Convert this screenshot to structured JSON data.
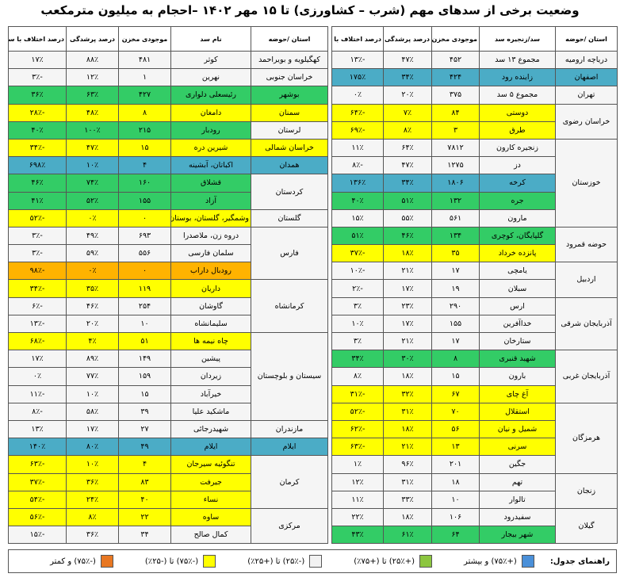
{
  "title": "وضعیت برخی از سدهای مهم (شرب – کشاورزی) تا ۱۵ مهر ۱۴۰۲ –احجام به میلیون مترمکعب",
  "right_table": {
    "headers": [
      "استان /حوضه",
      "سد/زنجیره سد",
      "موجودی مخزن",
      "درصد پرشدگی",
      "درصد اختلاف با سال قبل"
    ],
    "groups": [
      {
        "province": "دریاچه ارومیه",
        "color": "#f5f5f5",
        "rows": [
          [
            "مجموع ۱۳ سد",
            "۴۵۲",
            "۴۷٪",
            "-۱۳٪",
            "#f5f5f5"
          ]
        ]
      },
      {
        "province": "اصفهان",
        "color": "#4bacc6",
        "rows": [
          [
            "زاینده رود",
            "۴۲۴",
            "۳۴٪",
            "۱۷۵٪",
            "#4bacc6"
          ]
        ]
      },
      {
        "province": "تهران",
        "color": "#f5f5f5",
        "rows": [
          [
            "مجموع ۵ سد",
            "۳۷۵",
            "۲۰٪",
            "۰٪",
            "#f5f5f5"
          ]
        ]
      },
      {
        "province": "خراسان رضوی",
        "color": "#f5f5f5",
        "rows": [
          [
            "دوستی",
            "۸۴",
            "۷٪",
            "-۶۴٪",
            "#ffff00"
          ],
          [
            "طرق",
            "۳",
            "۸٪",
            "-۶۹٪",
            "#ffff00"
          ]
        ]
      },
      {
        "province": "خوزستان",
        "color": "#f5f5f5",
        "rows": [
          [
            "زنجیره کارون",
            "۷۸۱۲",
            "۶۴٪",
            "۱۱٪",
            "#f5f5f5"
          ],
          [
            "دز",
            "۱۲۷۵",
            "۴۷٪",
            "-۸٪",
            "#f5f5f5"
          ],
          [
            "کرخه",
            "۱۸۰۶",
            "۳۴٪",
            "۱۳۶٪",
            "#4bacc6"
          ],
          [
            "جره",
            "۱۳۲",
            "۵۱٪",
            "۴۰٪",
            "#33cc66"
          ],
          [
            "مارون",
            "۵۶۱",
            "۵۵٪",
            "۱۵٪",
            "#f5f5f5"
          ]
        ]
      },
      {
        "province": "حوضه قمرود",
        "color": "#f5f5f5",
        "rows": [
          [
            "گلپایگان، کوچری",
            "۱۳۴",
            "۴۶٪",
            "۵۱٪",
            "#33cc66"
          ],
          [
            "پانزده خرداد",
            "۳۵",
            "۱۸٪",
            "-۳۷٪",
            "#ffff00"
          ]
        ]
      },
      {
        "province": "اردبیل",
        "color": "#f5f5f5",
        "rows": [
          [
            "یامچی",
            "۱۷",
            "۲۱٪",
            "-۱۰٪",
            "#f5f5f5"
          ],
          [
            "سبلان",
            "۱۹",
            "۱۷٪",
            "-۲٪",
            "#f5f5f5"
          ]
        ]
      },
      {
        "province": "آذربایجان شرقی",
        "color": "#f5f5f5",
        "rows": [
          [
            "ارس",
            "۲۹۰",
            "۲۳٪",
            "۳٪",
            "#f5f5f5"
          ],
          [
            "خداآفرین",
            "۱۵۵",
            "۱۷٪",
            "۱۰٪",
            "#f5f5f5"
          ],
          [
            "ستارخان",
            "۱۷",
            "۲۱٪",
            "۳٪",
            "#f5f5f5"
          ]
        ]
      },
      {
        "province": "آذربایجان غربی",
        "color": "#f5f5f5",
        "rows": [
          [
            "شهید قنبری",
            "۸",
            "۳۰٪",
            "۳۴٪",
            "#33cc66"
          ],
          [
            "بارون",
            "۱۵",
            "۱۸٪",
            "۸٪",
            "#f5f5f5"
          ],
          [
            "آغ چای",
            "۶۷",
            "۳۲٪",
            "-۳۱٪",
            "#ffff00"
          ]
        ]
      },
      {
        "province": "هرمزگان",
        "color": "#f5f5f5",
        "rows": [
          [
            "استقلال",
            "۷۰",
            "۳۱٪",
            "-۵۲٪",
            "#ffff00"
          ],
          [
            "شمیل و نیان",
            "۵۶",
            "۱۸٪",
            "-۶۲٪",
            "#ffff00"
          ],
          [
            "سرنی",
            "۱۳",
            "۲۱٪",
            "-۶۳٪",
            "#ffff00"
          ],
          [
            "جگین",
            "۲۰۱",
            "۹۶٪",
            "۱٪",
            "#f5f5f5"
          ]
        ]
      },
      {
        "province": "زنجان",
        "color": "#f5f5f5",
        "rows": [
          [
            "تهم",
            "۱۸",
            "۳۱٪",
            "۱۲٪",
            "#f5f5f5"
          ],
          [
            "تالوار",
            "۱۰",
            "۳۳٪",
            "۱۱٪",
            "#f5f5f5"
          ]
        ]
      },
      {
        "province": "گیلان",
        "color": "#f5f5f5",
        "rows": [
          [
            "سفیدرود",
            "۱۰۶",
            "۱۸٪",
            "۲۲٪",
            "#f5f5f5"
          ],
          [
            "شهر بیجار",
            "۶۴",
            "۶۱٪",
            "۴۳٪",
            "#33cc66"
          ]
        ]
      }
    ]
  },
  "left_table": {
    "headers": [
      "استان /حوضه",
      "نام سد",
      "موجودی مخزن",
      "درصد پرشدگی",
      "درصد اختلاف با سال قبل"
    ],
    "groups": [
      {
        "province": "کهگیلویه و بویراحمد",
        "color": "#f5f5f5",
        "rows": [
          [
            "کوثر",
            "۴۸۱",
            "۸۸٪",
            "۱۷٪",
            "#f5f5f5"
          ]
        ]
      },
      {
        "province": "خراسان جنوبی",
        "color": "#f5f5f5",
        "rows": [
          [
            "نهرین",
            "۱",
            "۱۲٪",
            "-۳٪",
            "#f5f5f5"
          ]
        ]
      },
      {
        "province": "بوشهر",
        "color": "#33cc66",
        "rows": [
          [
            "رئیسعلی دلواری",
            "۴۲۷",
            "۶۳٪",
            "۳۶٪",
            "#33cc66"
          ]
        ]
      },
      {
        "province": "سمنان",
        "color": "#ffff00",
        "rows": [
          [
            "دامغان",
            "۸",
            "۴۸٪",
            "-۲۸٪",
            "#ffff00"
          ]
        ]
      },
      {
        "province": "لرستان",
        "color": "#f5f5f5",
        "rows": [
          [
            "رودبار",
            "۲۱۵",
            "۱۰۰٪",
            "۴۰٪",
            "#33cc66"
          ]
        ]
      },
      {
        "province": "خراسان شمالی",
        "color": "#ffff00",
        "rows": [
          [
            "شیرین دره",
            "۱۵",
            "۴۷٪",
            "-۳۴٪",
            "#ffff00"
          ]
        ]
      },
      {
        "province": "همدان",
        "color": "#4bacc6",
        "rows": [
          [
            "اکباتان، آبشینه",
            "۴",
            "۱۰٪",
            "۶۹۸٪",
            "#4bacc6"
          ]
        ]
      },
      {
        "province": "کردستان",
        "color": "#f5f5f5",
        "rows": [
          [
            "قشلاق",
            "۱۶۰",
            "۷۴٪",
            "۴۶٪",
            "#33cc66"
          ],
          [
            "آزاد",
            "۱۵۵",
            "۵۲٪",
            "۴۱٪",
            "#33cc66"
          ]
        ]
      },
      {
        "province": "گلستان",
        "color": "#f5f5f5",
        "rows": [
          [
            "وشمگیر، گلستان، بوستان",
            "۰",
            "۰٪",
            "-۵۲٪",
            "#ffff00"
          ]
        ]
      },
      {
        "province": "فارس",
        "color": "#f5f5f5",
        "rows": [
          [
            "دروه زن، ملاصدرا",
            "۶۹۳",
            "۴۹٪",
            "-۳٪",
            "#f5f5f5"
          ],
          [
            "سلمان فارسی",
            "۵۵۶",
            "۵۹٪",
            "-۳٪",
            "#f5f5f5"
          ],
          [
            "رودبال داراب",
            "۰",
            "۰٪",
            "-۹۸٪",
            "#ffb300"
          ]
        ]
      },
      {
        "province": "کرمانشاه",
        "color": "#f5f5f5",
        "rows": [
          [
            "داریان",
            "۱۱۹",
            "۳۵٪",
            "-۳۴٪",
            "#ffff00"
          ],
          [
            "گاوشان",
            "۲۵۴",
            "۴۶٪",
            "-۶٪",
            "#f5f5f5"
          ],
          [
            "سلیمانشاه",
            "۱۰",
            "۲۰٪",
            "-۱۳٪",
            "#f5f5f5"
          ]
        ]
      },
      {
        "province": "سیستان و بلوچستان",
        "color": "#f5f5f5",
        "rows": [
          [
            "چاه نیمه ها",
            "۵۱",
            "۴٪",
            "-۶۸٪",
            "#ffff00"
          ],
          [
            "پیشین",
            "۱۴۹",
            "۸۹٪",
            "۱۷٪",
            "#f5f5f5"
          ],
          [
            "زیردان",
            "۱۵۹",
            "۷۷٪",
            "۰٪",
            "#f5f5f5"
          ],
          [
            "خیرآباد",
            "۱۵",
            "۱۰٪",
            "-۱۱٪",
            "#f5f5f5"
          ],
          [
            "ماشکید علیا",
            "۳۹",
            "۵۸٪",
            "-۸٪",
            "#f5f5f5"
          ]
        ]
      },
      {
        "province": "مازندران",
        "color": "#f5f5f5",
        "rows": [
          [
            "شهیدرجائی",
            "۲۷",
            "۱۷٪",
            "۱۳٪",
            "#f5f5f5"
          ]
        ]
      },
      {
        "province": "ایلام",
        "color": "#4bacc6",
        "rows": [
          [
            "ایلام",
            "۴۹",
            "۸۰٪",
            "۱۴۰٪",
            "#4bacc6"
          ]
        ]
      },
      {
        "province": "کرمان",
        "color": "#f5f5f5",
        "rows": [
          [
            "تنگوئیه سیرجان",
            "۴",
            "۱۰٪",
            "-۶۳٪",
            "#ffff00"
          ],
          [
            "جیرفت",
            "۸۳",
            "۳۶٪",
            "-۳۷٪",
            "#ffff00"
          ],
          [
            "نساء",
            "۴۰",
            "۲۴٪",
            "-۵۴٪",
            "#ffff00"
          ]
        ]
      },
      {
        "province": "مرکزی",
        "color": "#f5f5f5",
        "rows": [
          [
            "ساوه",
            "۲۲",
            "۸٪",
            "-۵۶٪",
            "#ffff00"
          ],
          [
            "کمال صالح",
            "۳۴",
            "۳۶٪",
            "-۱۵٪",
            "#f5f5f5"
          ]
        ]
      }
    ]
  },
  "legend": {
    "title": "راهنمای جدول:",
    "items": [
      {
        "label": "(+۷۵٪) و بیشتر",
        "color": "#4a90d9"
      },
      {
        "label": "(+۲۵٪) تا (+۷۵٪)",
        "color": "#8cc63f"
      },
      {
        "label": "(-۲۵٪) تا (+۲۵٪)",
        "color": "#f2f2f2"
      },
      {
        "label": "(-۷۵٪) تا (-۲۵٪)",
        "color": "#ffff00"
      },
      {
        "label": "(-۷۵٪) و کمتر",
        "color": "#e87722"
      }
    ]
  }
}
